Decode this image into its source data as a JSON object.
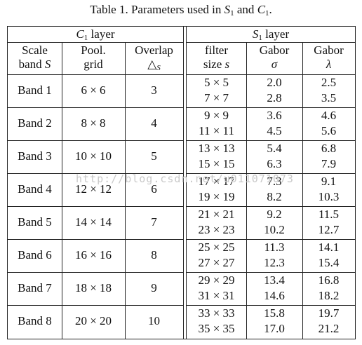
{
  "caption": {
    "prefix": "Table 1. Parameters used in ",
    "s": "S",
    "s_sub": "1",
    "and": " and ",
    "c": "C",
    "c_sub": "1",
    "end": "."
  },
  "groups": {
    "c1": "C",
    "c1_sub": "1",
    "c1_rest": " layer",
    "s1": "S",
    "s1_sub": "1",
    "s1_rest": " layer"
  },
  "headers": {
    "scale_l1": "Scale",
    "scale_l2": "band ",
    "scale_var": "S",
    "pool_l1": "Pool.",
    "pool_l2": "grid",
    "overlap_l1": "Overlap",
    "overlap_l2": "△",
    "overlap_sub": "S",
    "filter_l1": "filter",
    "filter_l2": "size ",
    "filter_var": "s",
    "gsig_l1": "Gabor",
    "gsig_l2": "σ",
    "glam_l1": "Gabor",
    "glam_l2": "λ"
  },
  "rows": [
    {
      "band": "Band 1",
      "pool": "6 × 6",
      "overlap": "3",
      "f1": "5 × 5",
      "f2": "7 × 7",
      "s1": "2.0",
      "s2": "2.8",
      "l1": "2.5",
      "l2": "3.5"
    },
    {
      "band": "Band 2",
      "pool": "8 × 8",
      "overlap": "4",
      "f1": "9 × 9",
      "f2": "11 × 11",
      "s1": "3.6",
      "s2": "4.5",
      "l1": "4.6",
      "l2": "5.6"
    },
    {
      "band": "Band 3",
      "pool": "10 × 10",
      "overlap": "5",
      "f1": "13 × 13",
      "f2": "15 × 15",
      "s1": "5.4",
      "s2": "6.3",
      "l1": "6.8",
      "l2": "7.9"
    },
    {
      "band": "Band 4",
      "pool": "12 × 12",
      "overlap": "6",
      "f1": "17 × 17",
      "f2": "19 × 19",
      "s1": "7.3",
      "s2": "8.2",
      "l1": "9.1",
      "l2": "10.3"
    },
    {
      "band": "Band 5",
      "pool": "14 × 14",
      "overlap": "7",
      "f1": "21 × 21",
      "f2": "23 × 23",
      "s1": "9.2",
      "s2": "10.2",
      "l1": "11.5",
      "l2": "12.7"
    },
    {
      "band": "Band 6",
      "pool": "16 × 16",
      "overlap": "8",
      "f1": "25 × 25",
      "f2": "27 × 27",
      "s1": "11.3",
      "s2": "12.3",
      "l1": "14.1",
      "l2": "15.4"
    },
    {
      "band": "Band 7",
      "pool": "18 × 18",
      "overlap": "9",
      "f1": "29 × 29",
      "f2": "31 × 31",
      "s1": "13.4",
      "s2": "14.6",
      "l1": "16.8",
      "l2": "18.2"
    },
    {
      "band": "Band 8",
      "pool": "20 × 20",
      "overlap": "10",
      "f1": "33 × 33",
      "f2": "35 × 35",
      "s1": "15.8",
      "s2": "17.0",
      "l1": "19.7",
      "l2": "21.2"
    }
  ],
  "watermark": "http://blog.csdn.net/u011071073"
}
